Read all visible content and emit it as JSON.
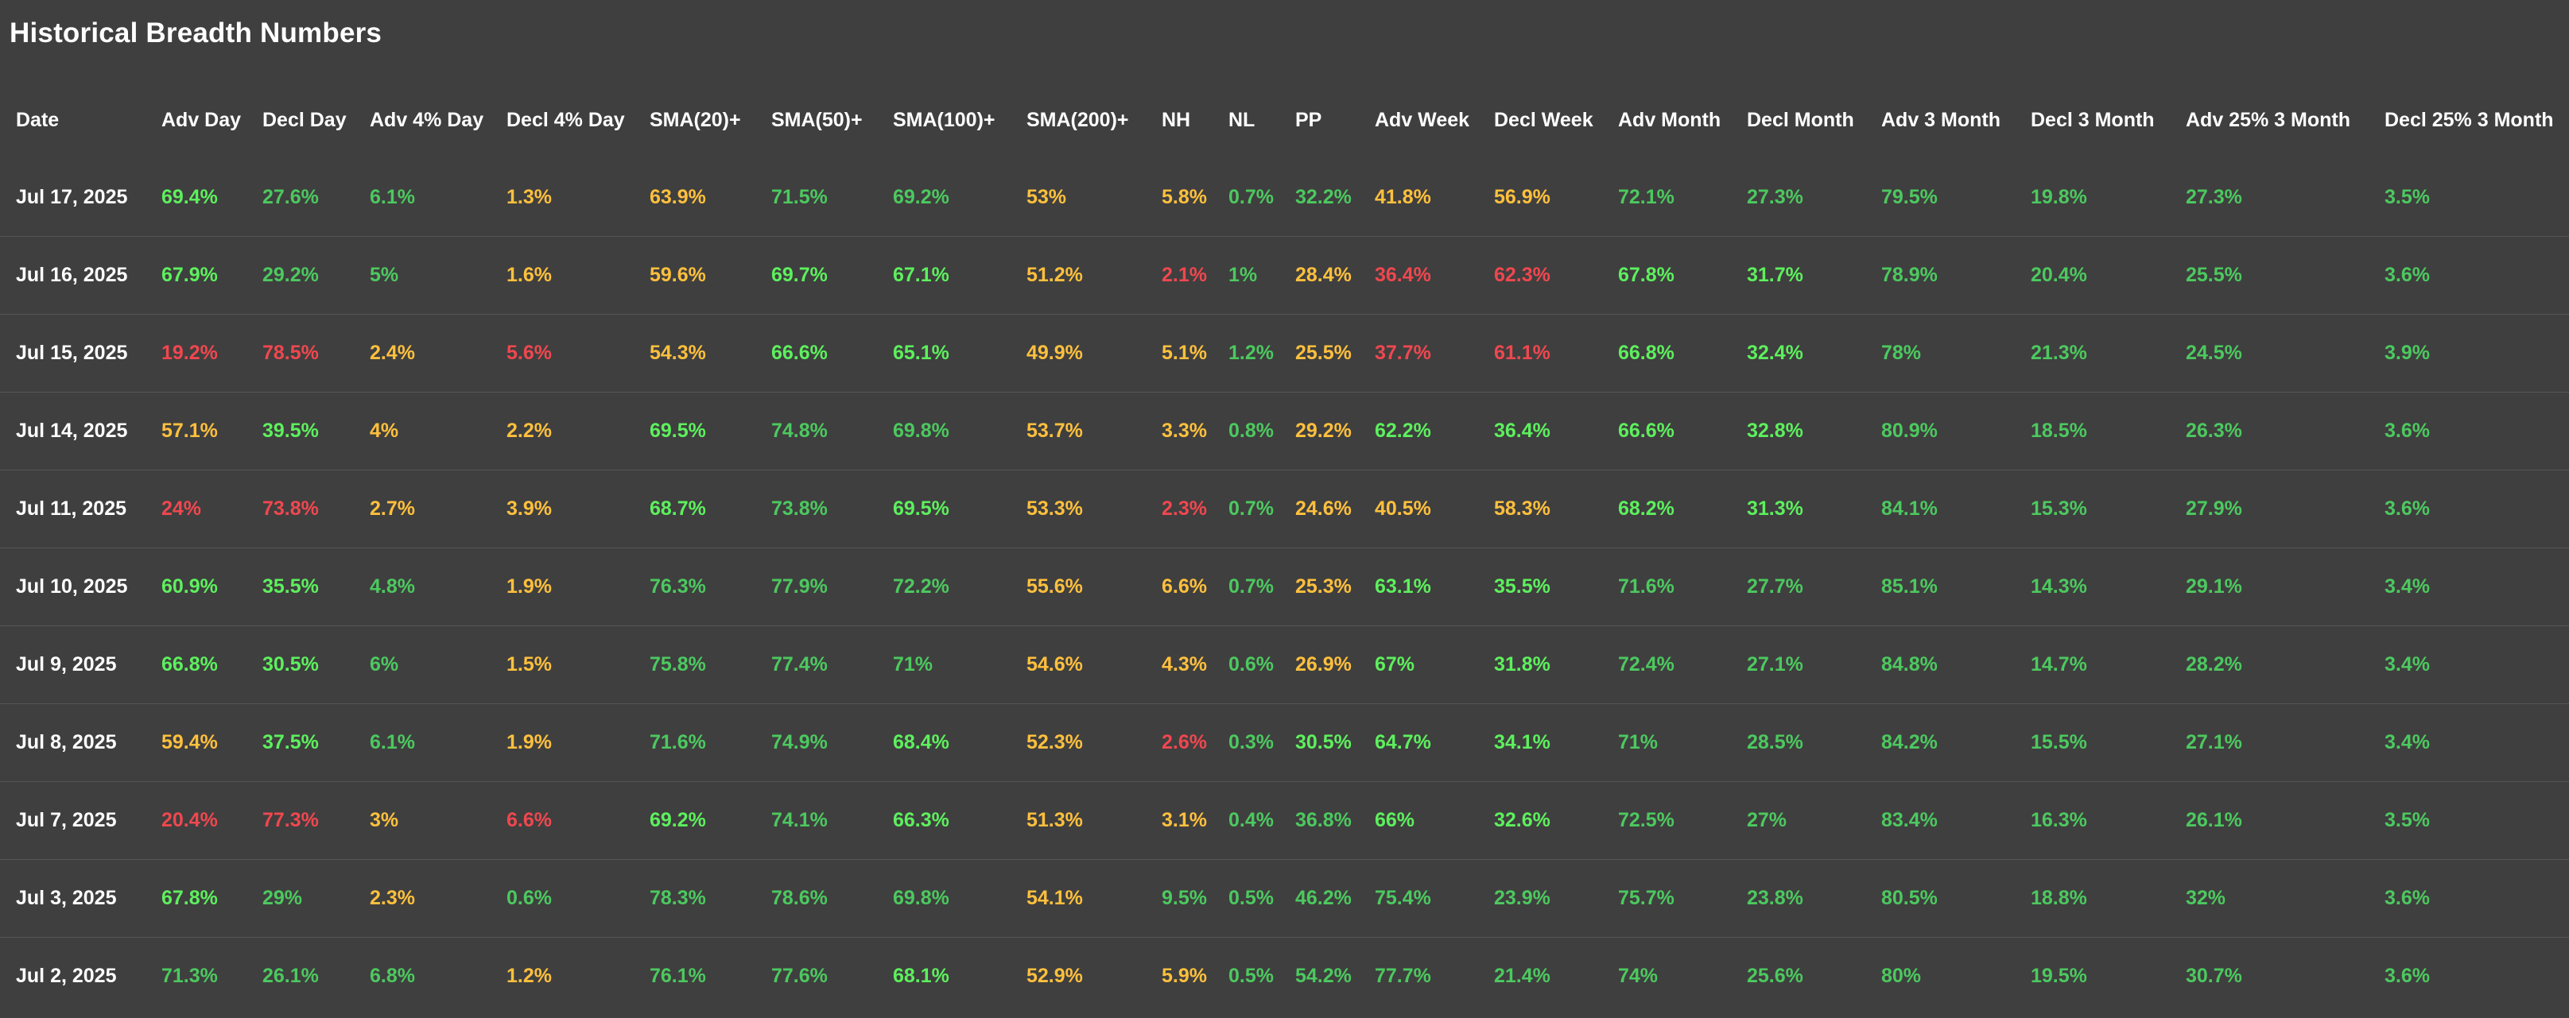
{
  "page": {
    "title": "Historical Breadth Numbers"
  },
  "colors": {
    "background": "#3f3f3f",
    "text": "#ffffff",
    "bright_green": "#5df05d",
    "green": "#4cc95f",
    "orange": "#ffc03d",
    "red": "#f0474f",
    "divider": "#555555"
  },
  "table": {
    "headers": [
      "Date",
      "Adv Day",
      "Decl Day",
      "Adv 4% Day",
      "Decl 4% Day",
      "SMA(20)+",
      "SMA(50)+",
      "SMA(100)+",
      "SMA(200)+",
      "NH",
      "NL",
      "PP",
      "Adv Week",
      "Decl Week",
      "Adv Month",
      "Decl Month",
      "Adv 3 Month",
      "Decl 3 Month",
      "Adv 25% 3 Month",
      "Decl 25% 3 Month"
    ],
    "rows": [
      {
        "date": "Jul 17, 2025",
        "cells": [
          {
            "v": "69.4%",
            "c": "bright_green"
          },
          {
            "v": "27.6%",
            "c": "green"
          },
          {
            "v": "6.1%",
            "c": "green"
          },
          {
            "v": "1.3%",
            "c": "orange"
          },
          {
            "v": "63.9%",
            "c": "orange"
          },
          {
            "v": "71.5%",
            "c": "green"
          },
          {
            "v": "69.2%",
            "c": "green"
          },
          {
            "v": "53%",
            "c": "orange"
          },
          {
            "v": "5.8%",
            "c": "orange"
          },
          {
            "v": "0.7%",
            "c": "green"
          },
          {
            "v": "32.2%",
            "c": "green"
          },
          {
            "v": "41.8%",
            "c": "orange"
          },
          {
            "v": "56.9%",
            "c": "orange"
          },
          {
            "v": "72.1%",
            "c": "green"
          },
          {
            "v": "27.3%",
            "c": "green"
          },
          {
            "v": "79.5%",
            "c": "green"
          },
          {
            "v": "19.8%",
            "c": "green"
          },
          {
            "v": "27.3%",
            "c": "green"
          },
          {
            "v": "3.5%",
            "c": "green"
          }
        ]
      },
      {
        "date": "Jul 16, 2025",
        "cells": [
          {
            "v": "67.9%",
            "c": "bright_green"
          },
          {
            "v": "29.2%",
            "c": "green"
          },
          {
            "v": "5%",
            "c": "green"
          },
          {
            "v": "1.6%",
            "c": "orange"
          },
          {
            "v": "59.6%",
            "c": "orange"
          },
          {
            "v": "69.7%",
            "c": "bright_green"
          },
          {
            "v": "67.1%",
            "c": "bright_green"
          },
          {
            "v": "51.2%",
            "c": "orange"
          },
          {
            "v": "2.1%",
            "c": "red"
          },
          {
            "v": "1%",
            "c": "green"
          },
          {
            "v": "28.4%",
            "c": "orange"
          },
          {
            "v": "36.4%",
            "c": "red"
          },
          {
            "v": "62.3%",
            "c": "red"
          },
          {
            "v": "67.8%",
            "c": "bright_green"
          },
          {
            "v": "31.7%",
            "c": "bright_green"
          },
          {
            "v": "78.9%",
            "c": "green"
          },
          {
            "v": "20.4%",
            "c": "green"
          },
          {
            "v": "25.5%",
            "c": "green"
          },
          {
            "v": "3.6%",
            "c": "green"
          }
        ]
      },
      {
        "date": "Jul 15, 2025",
        "cells": [
          {
            "v": "19.2%",
            "c": "red"
          },
          {
            "v": "78.5%",
            "c": "red"
          },
          {
            "v": "2.4%",
            "c": "orange"
          },
          {
            "v": "5.6%",
            "c": "red"
          },
          {
            "v": "54.3%",
            "c": "orange"
          },
          {
            "v": "66.6%",
            "c": "bright_green"
          },
          {
            "v": "65.1%",
            "c": "bright_green"
          },
          {
            "v": "49.9%",
            "c": "orange"
          },
          {
            "v": "5.1%",
            "c": "orange"
          },
          {
            "v": "1.2%",
            "c": "green"
          },
          {
            "v": "25.5%",
            "c": "orange"
          },
          {
            "v": "37.7%",
            "c": "red"
          },
          {
            "v": "61.1%",
            "c": "red"
          },
          {
            "v": "66.8%",
            "c": "bright_green"
          },
          {
            "v": "32.4%",
            "c": "bright_green"
          },
          {
            "v": "78%",
            "c": "green"
          },
          {
            "v": "21.3%",
            "c": "green"
          },
          {
            "v": "24.5%",
            "c": "green"
          },
          {
            "v": "3.9%",
            "c": "green"
          }
        ]
      },
      {
        "date": "Jul 14, 2025",
        "cells": [
          {
            "v": "57.1%",
            "c": "orange"
          },
          {
            "v": "39.5%",
            "c": "bright_green"
          },
          {
            "v": "4%",
            "c": "orange"
          },
          {
            "v": "2.2%",
            "c": "orange"
          },
          {
            "v": "69.5%",
            "c": "bright_green"
          },
          {
            "v": "74.8%",
            "c": "green"
          },
          {
            "v": "69.8%",
            "c": "green"
          },
          {
            "v": "53.7%",
            "c": "orange"
          },
          {
            "v": "3.3%",
            "c": "orange"
          },
          {
            "v": "0.8%",
            "c": "green"
          },
          {
            "v": "29.2%",
            "c": "orange"
          },
          {
            "v": "62.2%",
            "c": "bright_green"
          },
          {
            "v": "36.4%",
            "c": "bright_green"
          },
          {
            "v": "66.6%",
            "c": "bright_green"
          },
          {
            "v": "32.8%",
            "c": "bright_green"
          },
          {
            "v": "80.9%",
            "c": "green"
          },
          {
            "v": "18.5%",
            "c": "green"
          },
          {
            "v": "26.3%",
            "c": "green"
          },
          {
            "v": "3.6%",
            "c": "green"
          }
        ]
      },
      {
        "date": "Jul 11, 2025",
        "cells": [
          {
            "v": "24%",
            "c": "red"
          },
          {
            "v": "73.8%",
            "c": "red"
          },
          {
            "v": "2.7%",
            "c": "orange"
          },
          {
            "v": "3.9%",
            "c": "orange"
          },
          {
            "v": "68.7%",
            "c": "bright_green"
          },
          {
            "v": "73.8%",
            "c": "green"
          },
          {
            "v": "69.5%",
            "c": "bright_green"
          },
          {
            "v": "53.3%",
            "c": "orange"
          },
          {
            "v": "2.3%",
            "c": "red"
          },
          {
            "v": "0.7%",
            "c": "green"
          },
          {
            "v": "24.6%",
            "c": "orange"
          },
          {
            "v": "40.5%",
            "c": "orange"
          },
          {
            "v": "58.3%",
            "c": "orange"
          },
          {
            "v": "68.2%",
            "c": "bright_green"
          },
          {
            "v": "31.3%",
            "c": "bright_green"
          },
          {
            "v": "84.1%",
            "c": "green"
          },
          {
            "v": "15.3%",
            "c": "green"
          },
          {
            "v": "27.9%",
            "c": "green"
          },
          {
            "v": "3.6%",
            "c": "green"
          }
        ]
      },
      {
        "date": "Jul 10, 2025",
        "cells": [
          {
            "v": "60.9%",
            "c": "bright_green"
          },
          {
            "v": "35.5%",
            "c": "bright_green"
          },
          {
            "v": "4.8%",
            "c": "green"
          },
          {
            "v": "1.9%",
            "c": "orange"
          },
          {
            "v": "76.3%",
            "c": "green"
          },
          {
            "v": "77.9%",
            "c": "green"
          },
          {
            "v": "72.2%",
            "c": "green"
          },
          {
            "v": "55.6%",
            "c": "orange"
          },
          {
            "v": "6.6%",
            "c": "orange"
          },
          {
            "v": "0.7%",
            "c": "green"
          },
          {
            "v": "25.3%",
            "c": "orange"
          },
          {
            "v": "63.1%",
            "c": "bright_green"
          },
          {
            "v": "35.5%",
            "c": "bright_green"
          },
          {
            "v": "71.6%",
            "c": "green"
          },
          {
            "v": "27.7%",
            "c": "green"
          },
          {
            "v": "85.1%",
            "c": "green"
          },
          {
            "v": "14.3%",
            "c": "green"
          },
          {
            "v": "29.1%",
            "c": "green"
          },
          {
            "v": "3.4%",
            "c": "green"
          }
        ]
      },
      {
        "date": "Jul 9, 2025",
        "cells": [
          {
            "v": "66.8%",
            "c": "bright_green"
          },
          {
            "v": "30.5%",
            "c": "bright_green"
          },
          {
            "v": "6%",
            "c": "green"
          },
          {
            "v": "1.5%",
            "c": "orange"
          },
          {
            "v": "75.8%",
            "c": "green"
          },
          {
            "v": "77.4%",
            "c": "green"
          },
          {
            "v": "71%",
            "c": "green"
          },
          {
            "v": "54.6%",
            "c": "orange"
          },
          {
            "v": "4.3%",
            "c": "orange"
          },
          {
            "v": "0.6%",
            "c": "green"
          },
          {
            "v": "26.9%",
            "c": "orange"
          },
          {
            "v": "67%",
            "c": "bright_green"
          },
          {
            "v": "31.8%",
            "c": "bright_green"
          },
          {
            "v": "72.4%",
            "c": "green"
          },
          {
            "v": "27.1%",
            "c": "green"
          },
          {
            "v": "84.8%",
            "c": "green"
          },
          {
            "v": "14.7%",
            "c": "green"
          },
          {
            "v": "28.2%",
            "c": "green"
          },
          {
            "v": "3.4%",
            "c": "green"
          }
        ]
      },
      {
        "date": "Jul 8, 2025",
        "cells": [
          {
            "v": "59.4%",
            "c": "orange"
          },
          {
            "v": "37.5%",
            "c": "bright_green"
          },
          {
            "v": "6.1%",
            "c": "green"
          },
          {
            "v": "1.9%",
            "c": "orange"
          },
          {
            "v": "71.6%",
            "c": "green"
          },
          {
            "v": "74.9%",
            "c": "green"
          },
          {
            "v": "68.4%",
            "c": "bright_green"
          },
          {
            "v": "52.3%",
            "c": "orange"
          },
          {
            "v": "2.6%",
            "c": "red"
          },
          {
            "v": "0.3%",
            "c": "green"
          },
          {
            "v": "30.5%",
            "c": "bright_green"
          },
          {
            "v": "64.7%",
            "c": "bright_green"
          },
          {
            "v": "34.1%",
            "c": "bright_green"
          },
          {
            "v": "71%",
            "c": "green"
          },
          {
            "v": "28.5%",
            "c": "green"
          },
          {
            "v": "84.2%",
            "c": "green"
          },
          {
            "v": "15.5%",
            "c": "green"
          },
          {
            "v": "27.1%",
            "c": "green"
          },
          {
            "v": "3.4%",
            "c": "green"
          }
        ]
      },
      {
        "date": "Jul 7, 2025",
        "cells": [
          {
            "v": "20.4%",
            "c": "red"
          },
          {
            "v": "77.3%",
            "c": "red"
          },
          {
            "v": "3%",
            "c": "orange"
          },
          {
            "v": "6.6%",
            "c": "red"
          },
          {
            "v": "69.2%",
            "c": "bright_green"
          },
          {
            "v": "74.1%",
            "c": "green"
          },
          {
            "v": "66.3%",
            "c": "bright_green"
          },
          {
            "v": "51.3%",
            "c": "orange"
          },
          {
            "v": "3.1%",
            "c": "orange"
          },
          {
            "v": "0.4%",
            "c": "green"
          },
          {
            "v": "36.8%",
            "c": "green"
          },
          {
            "v": "66%",
            "c": "bright_green"
          },
          {
            "v": "32.6%",
            "c": "bright_green"
          },
          {
            "v": "72.5%",
            "c": "green"
          },
          {
            "v": "27%",
            "c": "green"
          },
          {
            "v": "83.4%",
            "c": "green"
          },
          {
            "v": "16.3%",
            "c": "green"
          },
          {
            "v": "26.1%",
            "c": "green"
          },
          {
            "v": "3.5%",
            "c": "green"
          }
        ]
      },
      {
        "date": "Jul 3, 2025",
        "cells": [
          {
            "v": "67.8%",
            "c": "bright_green"
          },
          {
            "v": "29%",
            "c": "green"
          },
          {
            "v": "2.3%",
            "c": "orange"
          },
          {
            "v": "0.6%",
            "c": "green"
          },
          {
            "v": "78.3%",
            "c": "green"
          },
          {
            "v": "78.6%",
            "c": "green"
          },
          {
            "v": "69.8%",
            "c": "green"
          },
          {
            "v": "54.1%",
            "c": "orange"
          },
          {
            "v": "9.5%",
            "c": "green"
          },
          {
            "v": "0.5%",
            "c": "green"
          },
          {
            "v": "46.2%",
            "c": "green"
          },
          {
            "v": "75.4%",
            "c": "green"
          },
          {
            "v": "23.9%",
            "c": "green"
          },
          {
            "v": "75.7%",
            "c": "green"
          },
          {
            "v": "23.8%",
            "c": "green"
          },
          {
            "v": "80.5%",
            "c": "green"
          },
          {
            "v": "18.8%",
            "c": "green"
          },
          {
            "v": "32%",
            "c": "green"
          },
          {
            "v": "3.6%",
            "c": "green"
          }
        ]
      },
      {
        "date": "Jul 2, 2025",
        "cells": [
          {
            "v": "71.3%",
            "c": "green"
          },
          {
            "v": "26.1%",
            "c": "green"
          },
          {
            "v": "6.8%",
            "c": "green"
          },
          {
            "v": "1.2%",
            "c": "orange"
          },
          {
            "v": "76.1%",
            "c": "green"
          },
          {
            "v": "77.6%",
            "c": "green"
          },
          {
            "v": "68.1%",
            "c": "bright_green"
          },
          {
            "v": "52.9%",
            "c": "orange"
          },
          {
            "v": "5.9%",
            "c": "orange"
          },
          {
            "v": "0.5%",
            "c": "green"
          },
          {
            "v": "54.2%",
            "c": "green"
          },
          {
            "v": "77.7%",
            "c": "green"
          },
          {
            "v": "21.4%",
            "c": "green"
          },
          {
            "v": "74%",
            "c": "green"
          },
          {
            "v": "25.6%",
            "c": "green"
          },
          {
            "v": "80%",
            "c": "green"
          },
          {
            "v": "19.5%",
            "c": "green"
          },
          {
            "v": "30.7%",
            "c": "green"
          },
          {
            "v": "3.6%",
            "c": "green"
          }
        ]
      }
    ]
  }
}
